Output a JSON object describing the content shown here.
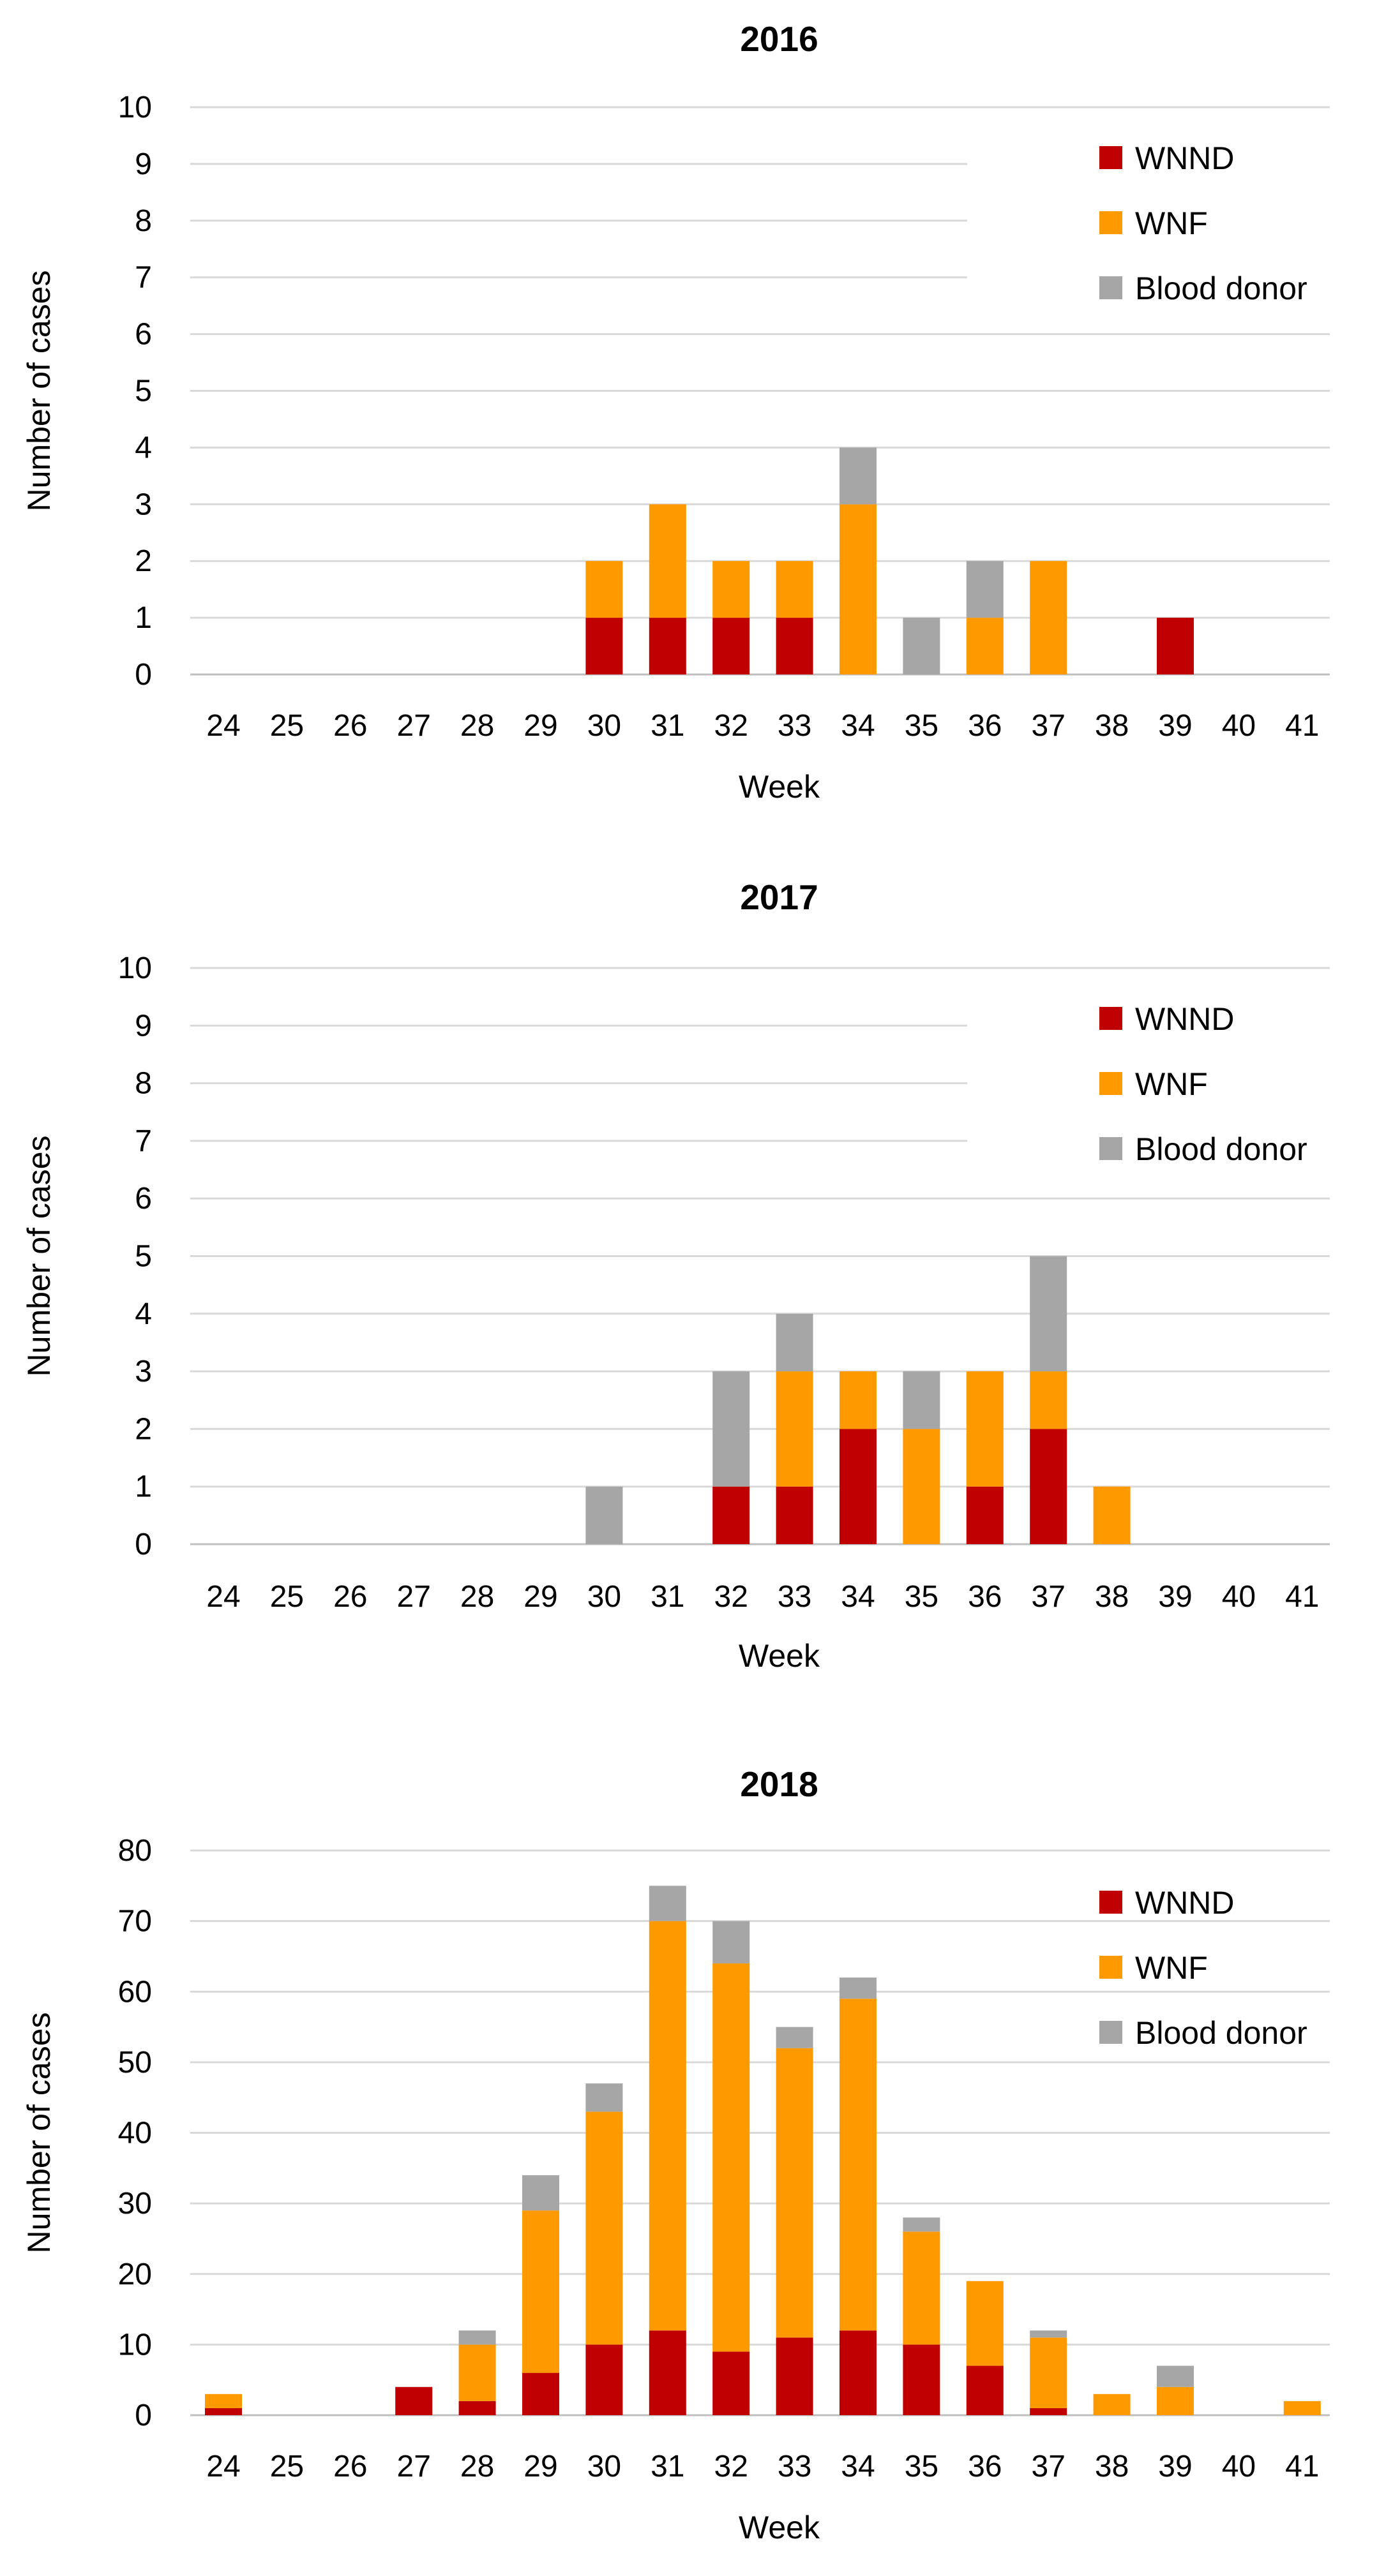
{
  "chart_data": [
    {
      "type": "bar",
      "stacked": true,
      "title": "2016",
      "xlabel": "Week",
      "ylabel": "Number of cases",
      "ylim": [
        0,
        10
      ],
      "yticks": [
        "0",
        "1",
        "2",
        "3",
        "4",
        "5",
        "6",
        "7",
        "8",
        "9",
        "10"
      ],
      "categories": [
        "24",
        "25",
        "26",
        "27",
        "28",
        "29",
        "30",
        "31",
        "32",
        "33",
        "34",
        "35",
        "36",
        "37",
        "38",
        "39",
        "40",
        "41"
      ],
      "legend_position": "top-right",
      "series": [
        {
          "name": "WNND",
          "color": "#C00000",
          "values": [
            0,
            0,
            0,
            0,
            0,
            0,
            1,
            1,
            1,
            1,
            0,
            0,
            0,
            0,
            0,
            1,
            0,
            0
          ]
        },
        {
          "name": "WNF",
          "color": "#FF9900",
          "values": [
            0,
            0,
            0,
            0,
            0,
            0,
            1,
            2,
            1,
            1,
            3,
            0,
            1,
            2,
            0,
            0,
            0,
            0
          ]
        },
        {
          "name": "Blood donor",
          "color": "#A6A6A6",
          "values": [
            0,
            0,
            0,
            0,
            0,
            0,
            0,
            0,
            0,
            0,
            1,
            1,
            1,
            0,
            0,
            0,
            0,
            0
          ]
        }
      ]
    },
    {
      "type": "bar",
      "stacked": true,
      "title": "2017",
      "xlabel": "Week",
      "ylabel": "Number of cases",
      "ylim": [
        0,
        10
      ],
      "yticks": [
        "0",
        "1",
        "2",
        "3",
        "4",
        "5",
        "6",
        "7",
        "8",
        "9",
        "10"
      ],
      "categories": [
        "24",
        "25",
        "26",
        "27",
        "28",
        "29",
        "30",
        "31",
        "32",
        "33",
        "34",
        "35",
        "36",
        "37",
        "38",
        "39",
        "40",
        "41"
      ],
      "legend_position": "top-right",
      "series": [
        {
          "name": "WNND",
          "color": "#C00000",
          "values": [
            0,
            0,
            0,
            0,
            0,
            0,
            0,
            0,
            1,
            1,
            2,
            0,
            1,
            2,
            0,
            0,
            0,
            0
          ]
        },
        {
          "name": "WNF",
          "color": "#FF9900",
          "values": [
            0,
            0,
            0,
            0,
            0,
            0,
            0,
            0,
            0,
            2,
            1,
            2,
            2,
            1,
            1,
            0,
            0,
            0
          ]
        },
        {
          "name": "Blood donor",
          "color": "#A6A6A6",
          "values": [
            0,
            0,
            0,
            0,
            0,
            0,
            1,
            0,
            2,
            1,
            0,
            1,
            0,
            2,
            0,
            0,
            0,
            0
          ]
        }
      ]
    },
    {
      "type": "bar",
      "stacked": true,
      "title": "2018",
      "xlabel": "Week",
      "ylabel": "Number of cases",
      "ylim": [
        0,
        80
      ],
      "yticks": [
        "0",
        "10",
        "20",
        "30",
        "40",
        "50",
        "60",
        "70",
        "80"
      ],
      "categories": [
        "24",
        "25",
        "26",
        "27",
        "28",
        "29",
        "30",
        "31",
        "32",
        "33",
        "34",
        "35",
        "36",
        "37",
        "38",
        "39",
        "40",
        "41"
      ],
      "legend_position": "top-right",
      "series": [
        {
          "name": "WNND",
          "color": "#C00000",
          "values": [
            1,
            0,
            0,
            4,
            2,
            6,
            10,
            12,
            9,
            11,
            12,
            10,
            7,
            1,
            0,
            0,
            0,
            0
          ]
        },
        {
          "name": "WNF",
          "color": "#FF9900",
          "values": [
            2,
            0,
            0,
            0,
            8,
            23,
            33,
            58,
            55,
            41,
            47,
            16,
            12,
            10,
            3,
            4,
            0,
            2
          ]
        },
        {
          "name": "Blood donor",
          "color": "#A6A6A6",
          "values": [
            0,
            0,
            0,
            0,
            2,
            5,
            4,
            5,
            6,
            3,
            3,
            2,
            0,
            1,
            0,
            3,
            0,
            0
          ]
        }
      ]
    }
  ]
}
